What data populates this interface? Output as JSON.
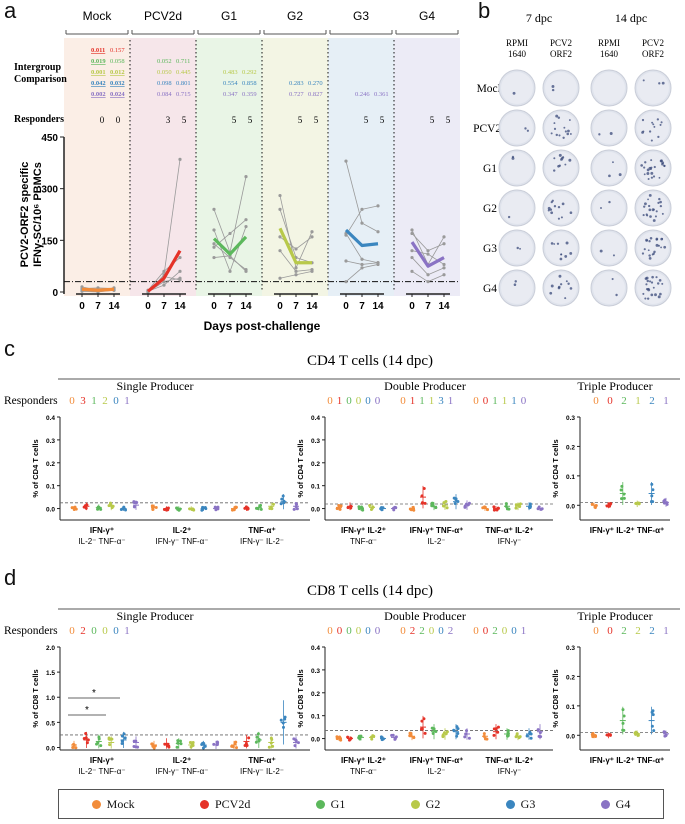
{
  "colors": {
    "Mock": "#f28c3a",
    "PCV2d": "#e53228",
    "G1": "#5cb85c",
    "G2": "#b8c94a",
    "G3": "#3b86bf",
    "G4": "#8a73c4",
    "bgMock": "#fbeee6",
    "bgPCV2d": "#f6e6ea",
    "bgG1": "#e9f5e6",
    "bgG2": "#f3f5e4",
    "bgG3": "#e6eff6",
    "bgG4": "#ecebf6",
    "axis": "#222222",
    "individual": "#9a9a9a"
  },
  "panel_a": {
    "letter": "a",
    "groups": [
      "Mock",
      "PCV2d",
      "G1",
      "G2",
      "G3",
      "G4"
    ],
    "row_labels": {
      "intergroup": "Intergroup\nComparison",
      "responders": "Responders"
    },
    "comparisons": [
      [
        "0.011",
        "0.157"
      ],
      [
        "0.019",
        "0.058"
      ],
      [
        "0.001",
        "0.012"
      ],
      [
        "0.042",
        "0.032"
      ],
      [
        "0.002",
        "0.024"
      ],
      [
        "0.052",
        "0.711"
      ],
      [
        "0.050",
        "0.445"
      ],
      [
        "0.098",
        "0.801"
      ],
      [
        "0.084",
        "0.715"
      ],
      [
        "0.483",
        "0.292"
      ],
      [
        "0.554",
        "0.858"
      ],
      [
        "0.347",
        "0.359"
      ],
      [
        "0.283",
        "0.270"
      ],
      [
        "0.727",
        "0.827"
      ],
      [
        "0.246",
        "0.361"
      ]
    ],
    "responders": [
      [
        "0",
        "0"
      ],
      [
        "3",
        "5"
      ],
      [
        "5",
        "5"
      ],
      [
        "5",
        "5"
      ],
      [
        "5",
        "5"
      ],
      [
        "5",
        "5"
      ]
    ],
    "ylabel": "PCV2-ORF2 specific IFNγ-SC/10⁶ PBMCs",
    "xlabel": "Days post-challenge"
  },
  "chart_data": [
    {
      "type": "line",
      "title": "PCV2-ORF2 specific IFNγ-SC per 10^6 PBMCs",
      "x": [
        0,
        7,
        14
      ],
      "xlabel": "Days post-challenge",
      "ylabel": "PCV2-ORF2 specific IFNγ-SC/10^6 PBMCs",
      "ylim": [
        0,
        450
      ],
      "yticks": [
        0,
        150,
        300,
        450
      ],
      "threshold": 30,
      "series": [
        {
          "name": "Mock",
          "mean": [
            8,
            5,
            8
          ],
          "individuals": [
            [
              2,
              0,
              5
            ],
            [
              10,
              12,
              10
            ],
            [
              15,
              5,
              12
            ],
            [
              5,
              3,
              8
            ],
            [
              8,
              6,
              5
            ]
          ]
        },
        {
          "name": "PCV2d",
          "mean": [
            2,
            40,
            120
          ],
          "individuals": [
            [
              0,
              50,
              385
            ],
            [
              5,
              60,
              100
            ],
            [
              2,
              20,
              60
            ],
            [
              0,
              30,
              40
            ],
            [
              3,
              45,
              35
            ]
          ]
        },
        {
          "name": "G1",
          "mean": [
            155,
            110,
            160
          ],
          "individuals": [
            [
              240,
              115,
              335
            ],
            [
              180,
              60,
              190
            ],
            [
              130,
              170,
              210
            ],
            [
              140,
              100,
              65
            ],
            [
              100,
              105,
              60
            ]
          ]
        },
        {
          "name": "G2",
          "mean": [
            185,
            85,
            85
          ],
          "individuals": [
            [
              280,
              70,
              175
            ],
            [
              240,
              100,
              85
            ],
            [
              160,
              125,
              160
            ],
            [
              120,
              60,
              65
            ],
            [
              40,
              50,
              60
            ]
          ]
        },
        {
          "name": "G3",
          "mean": [
            180,
            135,
            140
          ],
          "individuals": [
            [
              380,
              200,
              175
            ],
            [
              165,
              240,
              250
            ],
            [
              170,
              95,
              85
            ],
            [
              90,
              80,
              85
            ],
            [
              30,
              70,
              80
            ]
          ]
        },
        {
          "name": "G4",
          "mean": [
            145,
            75,
            100
          ],
          "individuals": [
            [
              180,
              80,
              160
            ],
            [
              170,
              120,
              140
            ],
            [
              120,
              110,
              80
            ],
            [
              100,
              50,
              70
            ],
            [
              60,
              30,
              50
            ]
          ]
        }
      ]
    },
    {
      "type": "scatter",
      "title": "CD4 T cells (14 dpc)",
      "ylabel": "% of CD4 T cells",
      "panels": [
        {
          "name": "Single Producer",
          "ylim": [
            -0.05,
            0.4
          ],
          "yticks": [
            0.0,
            0.1,
            0.2,
            0.3,
            0.4
          ],
          "threshold": 0.025,
          "responders": [
            "0",
            "3",
            "1",
            "2",
            "0",
            "1"
          ],
          "categories": [
            {
              "label": "IFN-γ⁺",
              "sub": "IL-2⁻ TNF-α⁻",
              "means": [
                0.0,
                0.01,
                0.005,
                0.01,
                0.0,
                0.015
              ]
            },
            {
              "label": "IL-2⁺",
              "sub": "IFN-γ⁻ TNF-α⁻",
              "means": [
                0.005,
                0.0,
                0.0,
                0.0,
                0.0,
                0.0
              ]
            },
            {
              "label": "TNF-α⁺",
              "sub": "IFN-γ⁻ IL-2⁻",
              "means": [
                0.0,
                0.0,
                0.005,
                0.01,
                0.03,
                0.01
              ]
            }
          ]
        },
        {
          "name": "Double Producer",
          "ylim": [
            -0.05,
            0.4
          ],
          "yticks": [
            0.0,
            0.1,
            0.2,
            0.3,
            0.4
          ],
          "threshold": 0.02,
          "responders": [
            "0",
            "1",
            "0",
            "0",
            "0",
            "0",
            "0",
            "1",
            "1",
            "1",
            "3",
            "1",
            "0",
            "0",
            "1",
            "1",
            "1",
            "0"
          ],
          "categories": [
            {
              "label": "IFN-γ⁺ IL-2⁺",
              "sub": "TNF-α⁻",
              "means": [
                0.005,
                0.01,
                0.0,
                0.005,
                0.0,
                0.0
              ]
            },
            {
              "label": "IFN-γ⁺ TNF-α⁺",
              "sub": "IL-2⁻",
              "means": [
                0.0,
                0.05,
                0.01,
                0.015,
                0.03,
                0.015
              ]
            },
            {
              "label": "TNF-α⁺ IL-2⁺",
              "sub": "IFN-γ⁻",
              "means": [
                0.0,
                0.0,
                0.01,
                0.01,
                0.01,
                0.0
              ]
            }
          ]
        },
        {
          "name": "Triple Producer",
          "ylim": [
            -0.05,
            0.3
          ],
          "yticks": [
            0.0,
            0.1,
            0.2,
            0.3
          ],
          "threshold": 0.01,
          "responders": [
            "0",
            "0",
            "2",
            "1",
            "2",
            "1"
          ],
          "categories": [
            {
              "label": "IFN-γ⁺ IL-2⁺ TNF-α⁺",
              "sub": "",
              "means": [
                0.0,
                0.0,
                0.04,
                0.005,
                0.04,
                0.01
              ]
            }
          ]
        }
      ]
    },
    {
      "type": "scatter",
      "title": "CD8 T cells (14 dpc)",
      "ylabel": "% of CD8 T cells",
      "significance": [
        "*",
        "*"
      ],
      "panels": [
        {
          "name": "Single Producer",
          "ylim": [
            -0.05,
            2.0
          ],
          "yticks": [
            0.0,
            0.5,
            1.0,
            1.5,
            2.0
          ],
          "threshold": 0.25,
          "responders": [
            "0",
            "2",
            "0",
            "0",
            "0",
            "1"
          ],
          "categories": [
            {
              "label": "IFN-γ⁺",
              "sub": "IL-2⁻ TNF-α⁻",
              "means": [
                0.05,
                0.15,
                0.12,
                0.1,
                0.15,
                0.1
              ]
            },
            {
              "label": "IL-2⁺",
              "sub": "IFN-γ⁻ TNF-α⁻",
              "means": [
                0.05,
                0.08,
                0.08,
                0.05,
                0.05,
                0.05
              ]
            },
            {
              "label": "TNF-α⁺",
              "sub": "IFN-γ⁻ IL-2⁻",
              "means": [
                0.05,
                0.12,
                0.15,
                0.1,
                0.5,
                0.1
              ]
            }
          ]
        },
        {
          "name": "Double Producer",
          "ylim": [
            -0.05,
            0.4
          ],
          "yticks": [
            0.0,
            0.1,
            0.2,
            0.3,
            0.4
          ],
          "threshold": 0.035,
          "responders": [
            "0",
            "0",
            "0",
            "0",
            "0",
            "0",
            "0",
            "2",
            "2",
            "0",
            "0",
            "2",
            "0",
            "0",
            "2",
            "0",
            "0",
            "1"
          ],
          "categories": [
            {
              "label": "IFN-γ⁺ IL-2⁺",
              "sub": "TNF-α⁻",
              "means": [
                0.0,
                0.0,
                0.005,
                0.005,
                0.0,
                0.005
              ]
            },
            {
              "label": "IFN-γ⁺ TNF-α⁺",
              "sub": "IL-2⁻",
              "means": [
                0.01,
                0.05,
                0.03,
                0.02,
                0.03,
                0.02
              ]
            },
            {
              "label": "TNF-α⁺ IL-2⁺",
              "sub": "IFN-γ⁻",
              "means": [
                0.01,
                0.03,
                0.02,
                0.01,
                0.02,
                0.03
              ]
            }
          ]
        },
        {
          "name": "Triple Producer",
          "ylim": [
            -0.05,
            0.3
          ],
          "yticks": [
            0.0,
            0.1,
            0.2,
            0.3
          ],
          "threshold": 0.01,
          "responders": [
            "0",
            "0",
            "2",
            "2",
            "2",
            "1"
          ],
          "categories": [
            {
              "label": "IFN-γ⁺ IL-2⁺ TNF-α⁺",
              "sub": "",
              "means": [
                0.0,
                0.0,
                0.05,
                0.005,
                0.05,
                0.005
              ]
            }
          ]
        }
      ]
    }
  ],
  "panel_b": {
    "letter": "b",
    "timepoints": [
      "7 dpc",
      "14 dpc"
    ],
    "columns": [
      "RPMI\n1640",
      "PCV2\nORF2",
      "RPMI\n1640",
      "PCV2\nORF2"
    ],
    "rows": [
      "Mock",
      "PCV2d",
      "G1",
      "G2",
      "G3",
      "G4"
    ],
    "spot_counts": [
      [
        1,
        2,
        0,
        3
      ],
      [
        2,
        14,
        2,
        12
      ],
      [
        2,
        10,
        3,
        22
      ],
      [
        1,
        12,
        2,
        20
      ],
      [
        2,
        9,
        2,
        20
      ],
      [
        2,
        10,
        2,
        22
      ]
    ]
  },
  "panel_c": {
    "letter": "c",
    "title": "CD4 T cells (14 dpc)",
    "responders_label": "Responders",
    "ylabel": "% of CD4 T cells"
  },
  "panel_d": {
    "letter": "d",
    "title": "CD8 T cells (14 dpc)",
    "responders_label": "Responders",
    "ylabel": "% of CD8 T cells"
  },
  "legend": [
    "Mock",
    "PCV2d",
    "G1",
    "G2",
    "G3",
    "G4"
  ]
}
